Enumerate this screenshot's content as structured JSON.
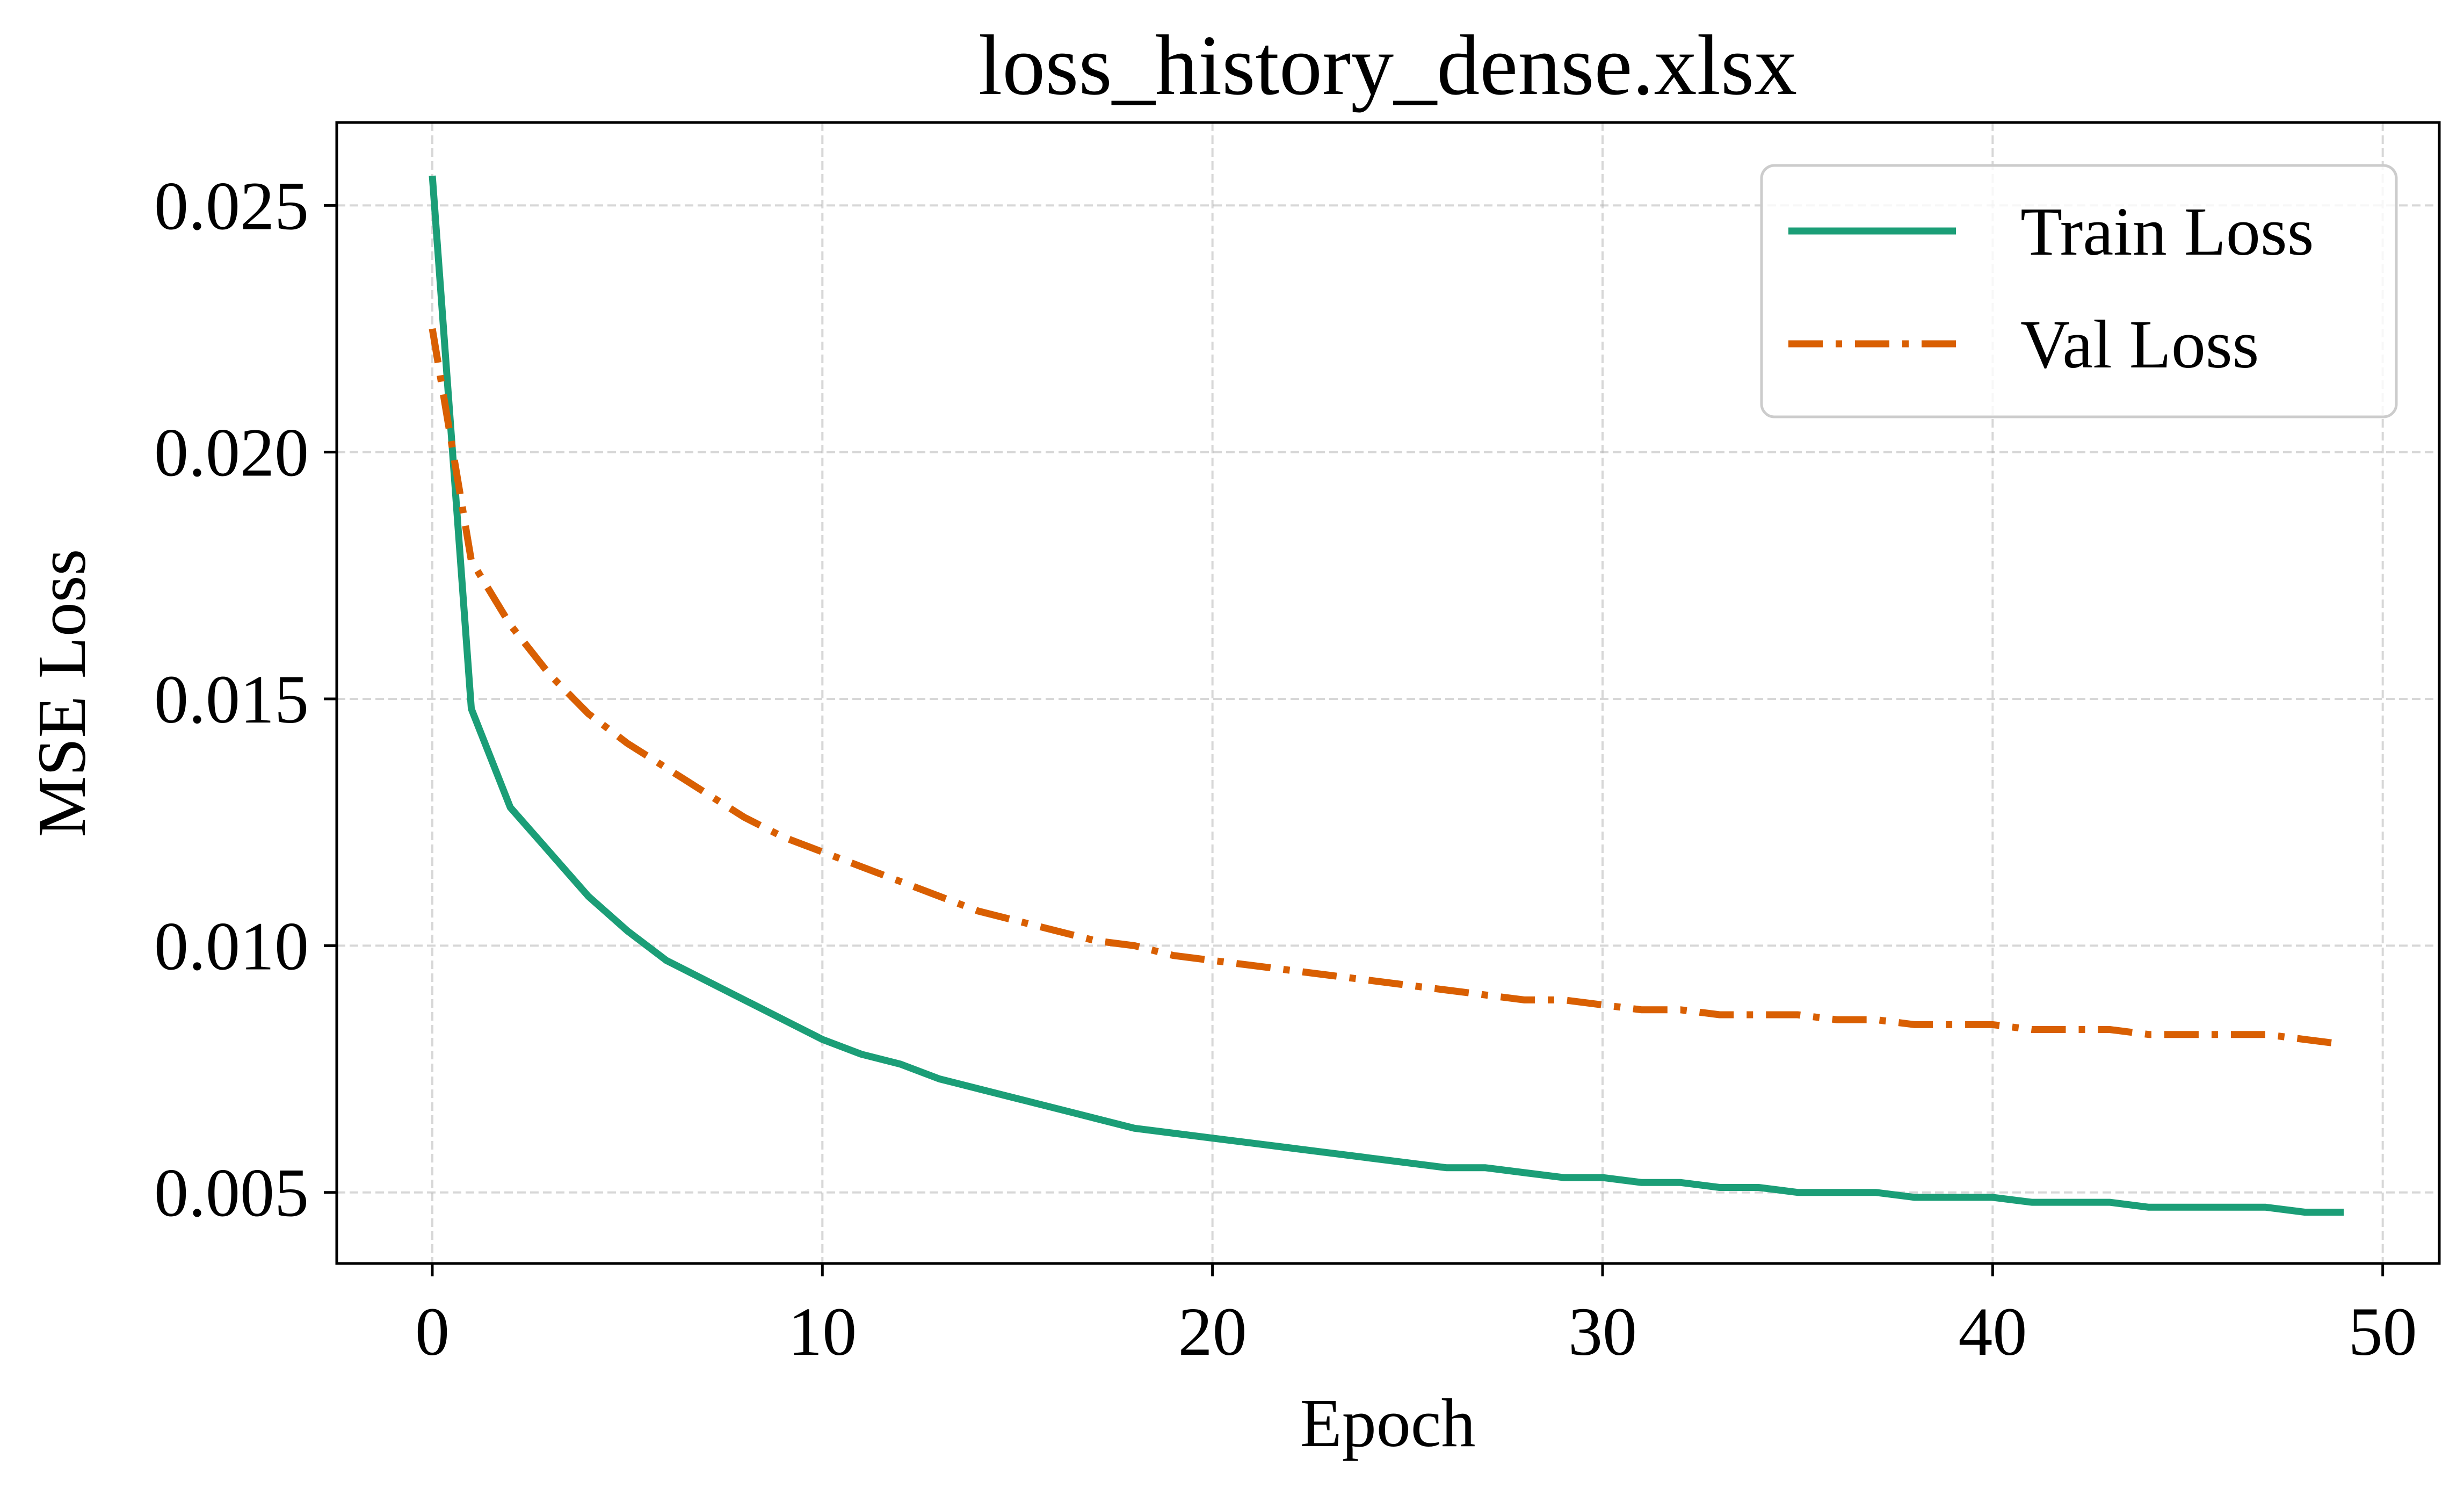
{
  "chart_data": {
    "type": "line",
    "title": "loss_history_dense.xlsx",
    "xlabel": "Epoch",
    "ylabel": "MSE Loss",
    "xlim": [
      -2.45,
      51.45
    ],
    "ylim": [
      0.00356,
      0.02668
    ],
    "xticks": [
      0,
      10,
      20,
      30,
      40,
      50
    ],
    "xtick_labels": [
      "0",
      "10",
      "20",
      "30",
      "40",
      "50"
    ],
    "yticks": [
      0.005,
      0.01,
      0.015,
      0.02,
      0.025
    ],
    "ytick_labels": [
      "0.005",
      "0.010",
      "0.015",
      "0.020",
      "0.025"
    ],
    "grid": true,
    "legend_position": "top-right",
    "x": [
      0,
      1,
      2,
      3,
      4,
      5,
      6,
      7,
      8,
      9,
      10,
      11,
      12,
      13,
      14,
      15,
      16,
      17,
      18,
      19,
      20,
      21,
      22,
      23,
      24,
      25,
      26,
      27,
      28,
      29,
      30,
      31,
      32,
      33,
      34,
      35,
      36,
      37,
      38,
      39,
      40,
      41,
      42,
      43,
      44,
      45,
      46,
      47,
      48,
      49
    ],
    "series": [
      {
        "name": "Train Loss",
        "color": "#1b9e77",
        "style": "solid",
        "values": [
          0.0256,
          0.0148,
          0.0128,
          0.0119,
          0.011,
          0.0103,
          0.0097,
          0.0093,
          0.0089,
          0.0085,
          0.0081,
          0.0078,
          0.0076,
          0.0073,
          0.0071,
          0.0069,
          0.0067,
          0.0065,
          0.0063,
          0.0062,
          0.0061,
          0.006,
          0.0059,
          0.0058,
          0.0057,
          0.0056,
          0.0055,
          0.0055,
          0.0054,
          0.0053,
          0.0053,
          0.0052,
          0.0052,
          0.0051,
          0.0051,
          0.005,
          0.005,
          0.005,
          0.0049,
          0.0049,
          0.0049,
          0.0048,
          0.0048,
          0.0048,
          0.0047,
          0.0047,
          0.0047,
          0.0047,
          0.0046,
          0.0046
        ]
      },
      {
        "name": "Val Loss",
        "color": "#d95f02",
        "style": "dashdot",
        "values": [
          0.0225,
          0.0178,
          0.0165,
          0.0155,
          0.0147,
          0.0141,
          0.0136,
          0.0131,
          0.0126,
          0.0122,
          0.0119,
          0.0116,
          0.0113,
          0.011,
          0.0107,
          0.0105,
          0.0103,
          0.0101,
          0.01,
          0.0098,
          0.0097,
          0.0096,
          0.0095,
          0.0094,
          0.0093,
          0.0092,
          0.0091,
          0.009,
          0.0089,
          0.0089,
          0.0088,
          0.0087,
          0.0087,
          0.0086,
          0.0086,
          0.0086,
          0.0085,
          0.0085,
          0.0084,
          0.0084,
          0.0084,
          0.0083,
          0.0083,
          0.0083,
          0.0082,
          0.0082,
          0.0082,
          0.0082,
          0.0081,
          0.008
        ]
      }
    ]
  }
}
